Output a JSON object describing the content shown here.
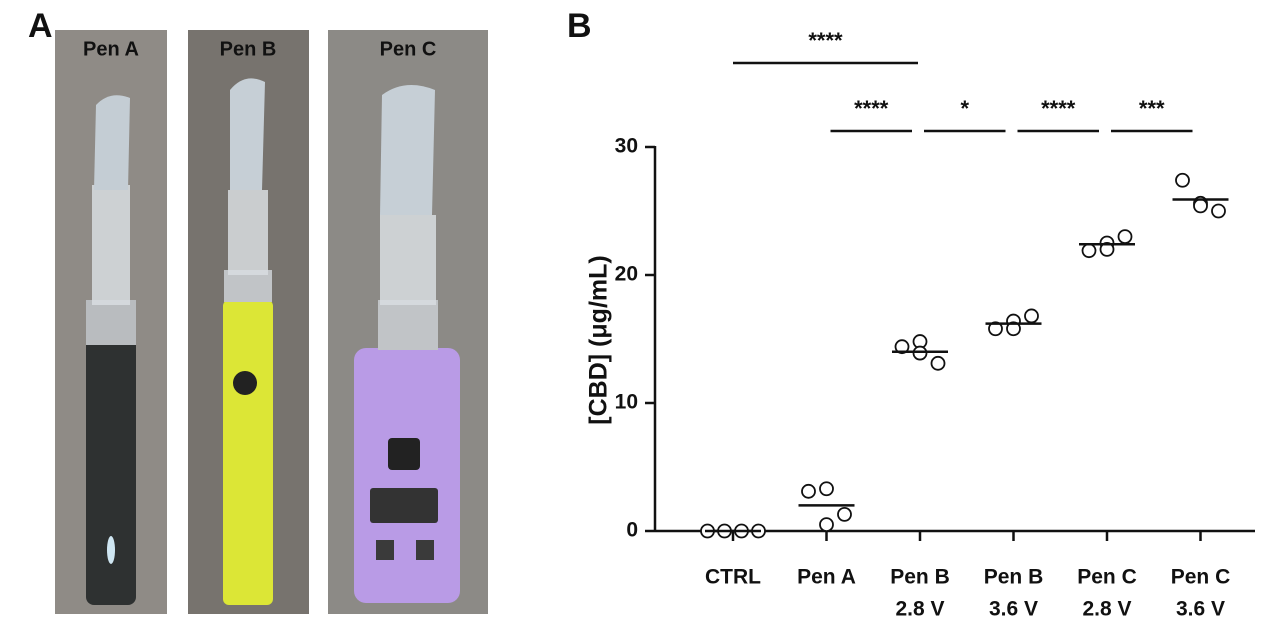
{
  "panels": [
    "A",
    "B"
  ],
  "photo_labels": [
    "Pen A",
    "Pen B",
    "Pen C"
  ],
  "chart_data": {
    "type": "dotplot",
    "ylabel": "[CBD] (μg/mL)",
    "categories": [
      [
        "CTRL"
      ],
      [
        "Pen A"
      ],
      [
        "Pen B",
        "2.8 V"
      ],
      [
        "Pen B",
        "3.6 V"
      ],
      [
        "Pen C",
        "2.8 V"
      ],
      [
        "Pen C",
        "3.6 V"
      ]
    ],
    "values": [
      [
        0,
        0,
        0,
        0
      ],
      [
        3.1,
        3.3,
        1.3,
        0.5
      ],
      [
        14.4,
        14.8,
        13.1,
        13.9
      ],
      [
        15.8,
        16.4,
        16.8,
        15.8
      ],
      [
        21.9,
        22.5,
        23.0,
        22.0
      ],
      [
        27.4,
        25.6,
        25.0,
        25.4
      ]
    ],
    "means": [
      0,
      2.0,
      14.0,
      16.2,
      22.4,
      25.9
    ],
    "ylim": [
      0,
      30
    ],
    "yticks": [
      0,
      10,
      20,
      30
    ],
    "comparisons": [
      {
        "from": 0,
        "to": 2,
        "label": "****"
      },
      {
        "from": 1,
        "to": 2,
        "label": "****"
      },
      {
        "from": 2,
        "to": 3,
        "label": "*"
      },
      {
        "from": 3,
        "to": 4,
        "label": "****"
      },
      {
        "from": 4,
        "to": 5,
        "label": "***"
      }
    ]
  }
}
